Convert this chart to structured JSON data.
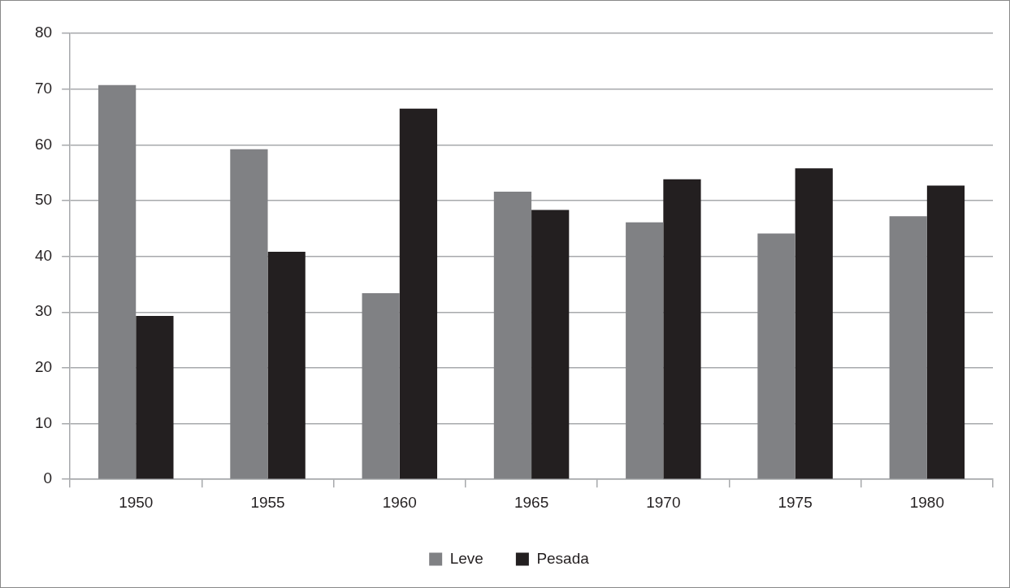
{
  "chart_data": {
    "type": "bar",
    "categories": [
      "1950",
      "1955",
      "1960",
      "1965",
      "1970",
      "1975",
      "1980"
    ],
    "series": [
      {
        "name": "Leve",
        "color": "#808184",
        "values": [
          70.7,
          59.2,
          33.4,
          51.6,
          46.1,
          44.1,
          47.2
        ]
      },
      {
        "name": "Pesada",
        "color": "#231f20",
        "values": [
          29.3,
          40.8,
          66.5,
          48.3,
          53.8,
          55.8,
          52.7
        ]
      }
    ],
    "ylim": [
      0,
      80
    ],
    "yticks": [
      0,
      10,
      20,
      30,
      40,
      50,
      60,
      70,
      80
    ],
    "grid": "y",
    "legend": "bottom"
  }
}
